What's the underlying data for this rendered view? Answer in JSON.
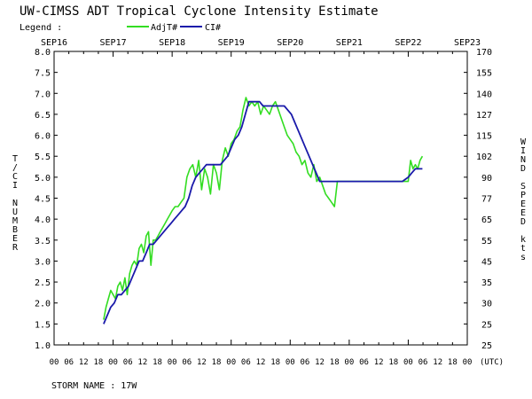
{
  "title": "UW-CIMSS ADT Tropical Cyclone Intensity Estimate",
  "legend": {
    "label": "Legend :",
    "entries": [
      {
        "name": "AdjT#",
        "color": "#33dd22"
      },
      {
        "name": "CI#",
        "color": "#1a1aaa"
      }
    ]
  },
  "storm_name": "STORM NAME :  17W",
  "chart_data": {
    "type": "line",
    "left_axis_label": "T/CI NUMBER",
    "right_axis_label": "WIND SPEED kts",
    "x_unit_label": "(UTC)",
    "y_range": [
      1.0,
      8.0
    ],
    "y_ticks": [
      "1.0",
      "1.5",
      "2.0",
      "2.5",
      "3.0",
      "3.5",
      "4.0",
      "4.5",
      "5.0",
      "5.5",
      "6.0",
      "6.5",
      "7.0",
      "7.5",
      "8.0"
    ],
    "wind_ticks": [
      "25",
      "25",
      "30",
      "35",
      "45",
      "55",
      "65",
      "77",
      "90",
      "102",
      "115",
      "127",
      "140",
      "155",
      "170"
    ],
    "date_labels": [
      "SEP16",
      "SEP17",
      "SEP18",
      "SEP19",
      "SEP20",
      "SEP21",
      "SEP22",
      "SEP23"
    ],
    "hour_labels": [
      "00",
      "06",
      "12",
      "18",
      "00",
      "06",
      "12",
      "18",
      "00",
      "06",
      "12",
      "18",
      "00",
      "06",
      "12",
      "18",
      "00",
      "06",
      "12",
      "18",
      "00",
      "06",
      "12",
      "18",
      "00",
      "06",
      "12",
      "18",
      "00"
    ],
    "x_range_days": [
      0,
      7
    ],
    "grid": false,
    "series": [
      {
        "name": "AdjT#",
        "color": "#33dd22",
        "x": [
          0.84,
          0.88,
          0.92,
          0.96,
          1.0,
          1.04,
          1.08,
          1.12,
          1.16,
          1.2,
          1.24,
          1.28,
          1.32,
          1.36,
          1.4,
          1.44,
          1.48,
          1.52,
          1.56,
          1.6,
          1.64,
          1.68,
          1.72,
          1.76,
          1.8,
          1.84,
          1.88,
          1.92,
          1.96,
          2.0,
          2.05,
          2.1,
          2.15,
          2.2,
          2.25,
          2.3,
          2.35,
          2.4,
          2.45,
          2.5,
          2.55,
          2.6,
          2.65,
          2.7,
          2.75,
          2.8,
          2.85,
          2.9,
          2.95,
          3.0,
          3.05,
          3.1,
          3.15,
          3.2,
          3.25,
          3.3,
          3.35,
          3.4,
          3.45,
          3.5,
          3.55,
          3.6,
          3.65,
          3.7,
          3.75,
          3.8,
          3.85,
          3.9,
          3.95,
          4.0,
          4.05,
          4.1,
          4.15,
          4.2,
          4.25,
          4.3,
          4.35,
          4.4,
          4.45,
          4.5,
          4.55,
          4.6,
          4.65,
          4.7,
          4.75,
          4.8,
          4.85,
          4.9,
          4.95,
          5.0,
          5.05,
          5.1,
          5.15,
          5.2,
          5.25,
          5.3,
          5.4,
          5.5,
          5.6,
          5.7,
          5.8,
          5.9,
          6.0,
          6.04,
          6.08,
          6.12,
          6.16,
          6.2,
          6.24
        ],
        "values": [
          1.6,
          1.9,
          2.1,
          2.3,
          2.2,
          2.1,
          2.4,
          2.5,
          2.3,
          2.6,
          2.2,
          2.7,
          2.9,
          3.0,
          2.9,
          3.3,
          3.4,
          3.2,
          3.6,
          3.7,
          2.9,
          3.5,
          3.5,
          3.6,
          3.7,
          3.8,
          3.9,
          4.0,
          4.1,
          4.2,
          4.3,
          4.3,
          4.4,
          4.5,
          5.0,
          5.2,
          5.3,
          5.0,
          5.4,
          4.7,
          5.2,
          5.0,
          4.6,
          5.3,
          5.1,
          4.7,
          5.4,
          5.7,
          5.5,
          5.8,
          5.9,
          6.1,
          6.2,
          6.6,
          6.9,
          6.7,
          6.8,
          6.7,
          6.8,
          6.5,
          6.7,
          6.6,
          6.5,
          6.7,
          6.8,
          6.6,
          6.4,
          6.2,
          6.0,
          5.9,
          5.8,
          5.6,
          5.5,
          5.3,
          5.4,
          5.1,
          5.0,
          5.3,
          4.9,
          5.0,
          4.8,
          4.6,
          4.5,
          4.4,
          4.3,
          4.9,
          4.9,
          4.9,
          4.9,
          4.9,
          4.9,
          4.9,
          4.9,
          4.9,
          4.9,
          4.9,
          4.9,
          4.9,
          4.9,
          4.9,
          4.9,
          4.9,
          4.9,
          5.4,
          5.2,
          5.3,
          5.2,
          5.4,
          5.5
        ],
        "note_values": "estimated"
      },
      {
        "name": "CI#",
        "color": "#1a1aaa",
        "x": [
          0.84,
          0.9,
          0.96,
          1.02,
          1.08,
          1.14,
          1.2,
          1.26,
          1.32,
          1.38,
          1.44,
          1.5,
          1.56,
          1.62,
          1.68,
          1.74,
          1.8,
          1.86,
          1.92,
          1.98,
          2.04,
          2.1,
          2.16,
          2.22,
          2.28,
          2.34,
          2.4,
          2.46,
          2.52,
          2.58,
          2.64,
          2.7,
          2.76,
          2.82,
          2.88,
          2.94,
          3.0,
          3.06,
          3.12,
          3.18,
          3.24,
          3.3,
          3.36,
          3.42,
          3.48,
          3.54,
          3.6,
          3.66,
          3.72,
          3.78,
          3.84,
          3.9,
          3.96,
          4.02,
          4.08,
          4.14,
          4.2,
          4.26,
          4.32,
          4.38,
          4.44,
          4.5,
          4.56,
          4.62,
          4.68,
          4.74,
          4.8,
          4.86,
          4.92,
          4.98,
          5.04,
          5.1,
          5.16,
          5.22,
          5.28,
          5.34,
          5.4,
          5.5,
          5.6,
          5.7,
          5.8,
          5.9,
          6.0,
          6.06,
          6.12,
          6.18,
          6.24
        ],
        "values": [
          1.5,
          1.7,
          1.9,
          2.0,
          2.2,
          2.2,
          2.3,
          2.4,
          2.6,
          2.8,
          3.0,
          3.0,
          3.2,
          3.4,
          3.4,
          3.5,
          3.6,
          3.7,
          3.8,
          3.9,
          4.0,
          4.1,
          4.2,
          4.3,
          4.5,
          4.8,
          5.0,
          5.1,
          5.2,
          5.3,
          5.3,
          5.3,
          5.3,
          5.3,
          5.4,
          5.5,
          5.7,
          5.9,
          6.0,
          6.2,
          6.5,
          6.8,
          6.8,
          6.8,
          6.8,
          6.7,
          6.7,
          6.7,
          6.7,
          6.7,
          6.7,
          6.7,
          6.6,
          6.5,
          6.3,
          6.1,
          5.9,
          5.7,
          5.5,
          5.3,
          5.1,
          4.9,
          4.9,
          4.9,
          4.9,
          4.9,
          4.9,
          4.9,
          4.9,
          4.9,
          4.9,
          4.9,
          4.9,
          4.9,
          4.9,
          4.9,
          4.9,
          4.9,
          4.9,
          4.9,
          4.9,
          4.9,
          5.0,
          5.1,
          5.2,
          5.2,
          5.2
        ]
      }
    ]
  }
}
